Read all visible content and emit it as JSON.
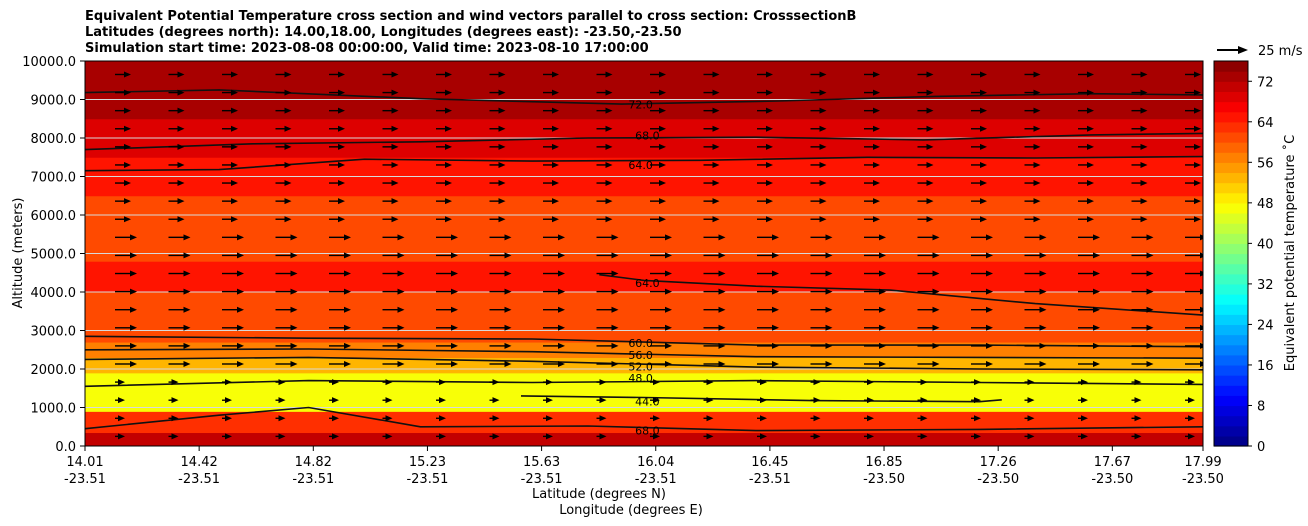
{
  "chart_data": {
    "type": "heatmap",
    "title_lines": [
      "Equivalent Potential Temperature cross section and wind vectors parallel to cross section: CrosssectionB",
      "Latitudes (degrees north): 14.00,18.00, Longitudes (degrees east): -23.50,-23.50",
      "Simulation start time: 2023-08-08 00:00:00, Valid time: 2023-08-10 17:00:00"
    ],
    "xlabel_lat": "Latitude (degrees N)",
    "xlabel_lon": "Longitude (degrees E)",
    "ylabel": "Altitude (meters)",
    "x_ticks": [
      {
        "lat": "14.01",
        "lon": "-23.51"
      },
      {
        "lat": "14.42",
        "lon": "-23.51"
      },
      {
        "lat": "14.82",
        "lon": "-23.51"
      },
      {
        "lat": "15.23",
        "lon": "-23.51"
      },
      {
        "lat": "15.63",
        "lon": "-23.51"
      },
      {
        "lat": "16.04",
        "lon": "-23.51"
      },
      {
        "lat": "16.45",
        "lon": "-23.51"
      },
      {
        "lat": "16.85",
        "lon": "-23.50"
      },
      {
        "lat": "17.26",
        "lon": "-23.50"
      },
      {
        "lat": "17.67",
        "lon": "-23.50"
      },
      {
        "lat": "17.99",
        "lon": "-23.50"
      }
    ],
    "y_ticks": [
      "0.0",
      "1000.0",
      "2000.0",
      "3000.0",
      "4000.0",
      "5000.0",
      "6000.0",
      "7000.0",
      "8000.0",
      "9000.0",
      "10000.0"
    ],
    "ylim": [
      0,
      10000
    ],
    "colorbar": {
      "label": "Equivalent potential temperature ˚C",
      "ticks": [
        "0",
        "8",
        "16",
        "24",
        "32",
        "40",
        "48",
        "56",
        "64",
        "72"
      ],
      "range": [
        0,
        76
      ]
    },
    "quiver_key": "25 m/s",
    "layers": [
      {
        "base": 0,
        "top": 350,
        "theta": 70
      },
      {
        "base": 350,
        "top": 900,
        "theta": 62
      },
      {
        "base": 900,
        "top": 1400,
        "theta": 47
      },
      {
        "base": 1400,
        "top": 1900,
        "theta": 46
      },
      {
        "base": 1900,
        "top": 2300,
        "theta": 52
      },
      {
        "base": 2300,
        "top": 2700,
        "theta": 57
      },
      {
        "base": 2700,
        "top": 4000,
        "theta": 61
      },
      {
        "base": 4000,
        "top": 4800,
        "theta": 64
      },
      {
        "base": 4800,
        "top": 6500,
        "theta": 61
      },
      {
        "base": 6500,
        "top": 7500,
        "theta": 65
      },
      {
        "base": 7500,
        "top": 8500,
        "theta": 69
      },
      {
        "base": 8500,
        "top": 10000,
        "theta": 73
      }
    ],
    "contours": [
      {
        "label": "72.0",
        "theta": 72,
        "x": [
          0,
          0.12,
          0.3,
          0.48,
          0.62,
          0.76,
          0.9,
          1.0
        ],
        "y": [
          9180,
          9250,
          9020,
          8880,
          8960,
          9080,
          9150,
          9120
        ],
        "label_pos": [
          0.497,
          8870
        ]
      },
      {
        "label": "68.0",
        "theta": 68,
        "x": [
          0,
          0.15,
          0.3,
          0.45,
          0.6,
          0.75,
          0.9,
          1.0
        ],
        "y": [
          7700,
          7850,
          7900,
          8000,
          8020,
          7950,
          8080,
          8120
        ],
        "label_pos": [
          0.503,
          8070
        ]
      },
      {
        "label": "64.0",
        "theta": 64,
        "x": [
          0,
          0.12,
          0.25,
          0.4,
          0.55,
          0.7,
          0.85,
          1.0
        ],
        "y": [
          7150,
          7180,
          7450,
          7400,
          7420,
          7500,
          7480,
          7520
        ],
        "label_pos": [
          0.497,
          7300
        ]
      },
      {
        "label": "64.0",
        "theta": 64,
        "x": [
          0.46,
          0.5,
          0.6,
          0.72,
          0.85,
          1.0
        ],
        "y": [
          4450,
          4300,
          4150,
          4050,
          3700,
          3400
        ],
        "label_pos": [
          0.503,
          4230
        ]
      },
      {
        "label": "60.0",
        "theta": 60,
        "x": [
          0,
          0.2,
          0.4,
          0.6,
          0.8,
          1.0
        ],
        "y": [
          2850,
          2800,
          2780,
          2620,
          2620,
          2580
        ],
        "label_pos": [
          0.497,
          2680
        ]
      },
      {
        "label": "56.0",
        "theta": 56,
        "x": [
          0,
          0.2,
          0.4,
          0.6,
          0.8,
          1.0
        ],
        "y": [
          2500,
          2520,
          2450,
          2320,
          2300,
          2280
        ],
        "label_pos": [
          0.497,
          2360
        ]
      },
      {
        "label": "52.0",
        "theta": 52,
        "x": [
          0,
          0.2,
          0.4,
          0.6,
          0.8,
          1.0
        ],
        "y": [
          2250,
          2300,
          2200,
          2050,
          2000,
          1980
        ],
        "label_pos": [
          0.497,
          2070
        ]
      },
      {
        "label": "48.0",
        "theta": 48,
        "x": [
          0,
          0.2,
          0.4,
          0.6,
          0.8,
          1.0
        ],
        "y": [
          1550,
          1700,
          1650,
          1700,
          1650,
          1600
        ],
        "label_pos": [
          0.497,
          1760
        ]
      },
      {
        "label": "44.0",
        "theta": 44,
        "x": [
          0.39,
          0.5,
          0.65,
          0.8,
          0.82
        ],
        "y": [
          1300,
          1260,
          1180,
          1150,
          1200
        ],
        "label_pos": [
          0.503,
          1150
        ]
      },
      {
        "label": "68.0",
        "theta": 68,
        "x": [
          0,
          0.12,
          0.2,
          0.3,
          0.45,
          0.6,
          0.8,
          1.0
        ],
        "y": [
          450,
          800,
          1000,
          500,
          520,
          400,
          430,
          500
        ],
        "label_pos": [
          0.503,
          400
        ]
      }
    ]
  }
}
